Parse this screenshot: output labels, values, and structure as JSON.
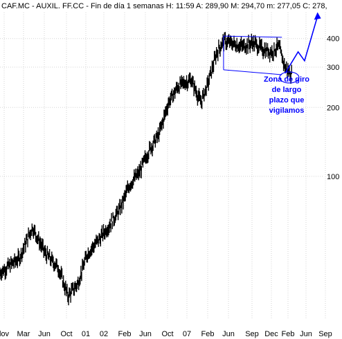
{
  "header": {
    "text": "CAF.MC - AUXIL. FF.CC - Fin de día 1 semanas  H: 11:59  A: 289,90  M: 294,70  m: 277,05  C: 278,"
  },
  "chart_data": {
    "type": "line",
    "series_style": "weekly price bars",
    "scale": "log",
    "ylim": [
      24,
      520
    ],
    "grid": true,
    "y_ticks": [
      {
        "label": "400",
        "value": 400
      },
      {
        "label": "300",
        "value": 300
      },
      {
        "label": "200",
        "value": 200
      },
      {
        "label": "100",
        "value": 100
      }
    ],
    "x_ticks": [
      "lov",
      "Mar",
      "Jun",
      "Oct",
      "01",
      "02",
      "Feb",
      "Jun",
      "Oct",
      "07",
      "Feb",
      "Jun",
      "Sep",
      "Dec",
      "Feb",
      "Jun",
      "Sep"
    ],
    "price_path": [
      [
        0.0,
        38
      ],
      [
        0.06,
        44
      ],
      [
        0.1,
        60
      ],
      [
        0.14,
        46
      ],
      [
        0.18,
        40
      ],
      [
        0.21,
        30
      ],
      [
        0.24,
        34
      ],
      [
        0.27,
        46
      ],
      [
        0.31,
        54
      ],
      [
        0.34,
        62
      ],
      [
        0.37,
        72
      ],
      [
        0.4,
        92
      ],
      [
        0.43,
        104
      ],
      [
        0.46,
        130
      ],
      [
        0.49,
        152
      ],
      [
        0.52,
        210
      ],
      [
        0.55,
        248
      ],
      [
        0.59,
        265
      ],
      [
        0.62,
        210
      ],
      [
        0.64,
        250
      ],
      [
        0.67,
        350
      ],
      [
        0.69,
        390
      ],
      [
        0.72,
        380
      ],
      [
        0.75,
        370
      ],
      [
        0.78,
        385
      ],
      [
        0.81,
        360
      ],
      [
        0.84,
        350
      ],
      [
        0.86,
        370
      ],
      [
        0.88,
        300
      ],
      [
        0.9,
        280
      ]
    ],
    "channel": {
      "upper": [
        [
          0.69,
          410
        ],
        [
          0.87,
          405
        ]
      ],
      "lower": [
        [
          0.69,
          292
        ],
        [
          0.87,
          278
        ]
      ]
    },
    "projection": [
      [
        0.88,
        282
      ],
      [
        0.92,
        350
      ],
      [
        0.94,
        320
      ],
      [
        0.98,
        500
      ]
    ],
    "annotation": [
      "Zona de giro",
      "de largo",
      "plazo que",
      "vigilamos"
    ],
    "colors": {
      "price": "#000000",
      "annotation": "#0000ff",
      "grid": "#d3d3d3"
    }
  }
}
